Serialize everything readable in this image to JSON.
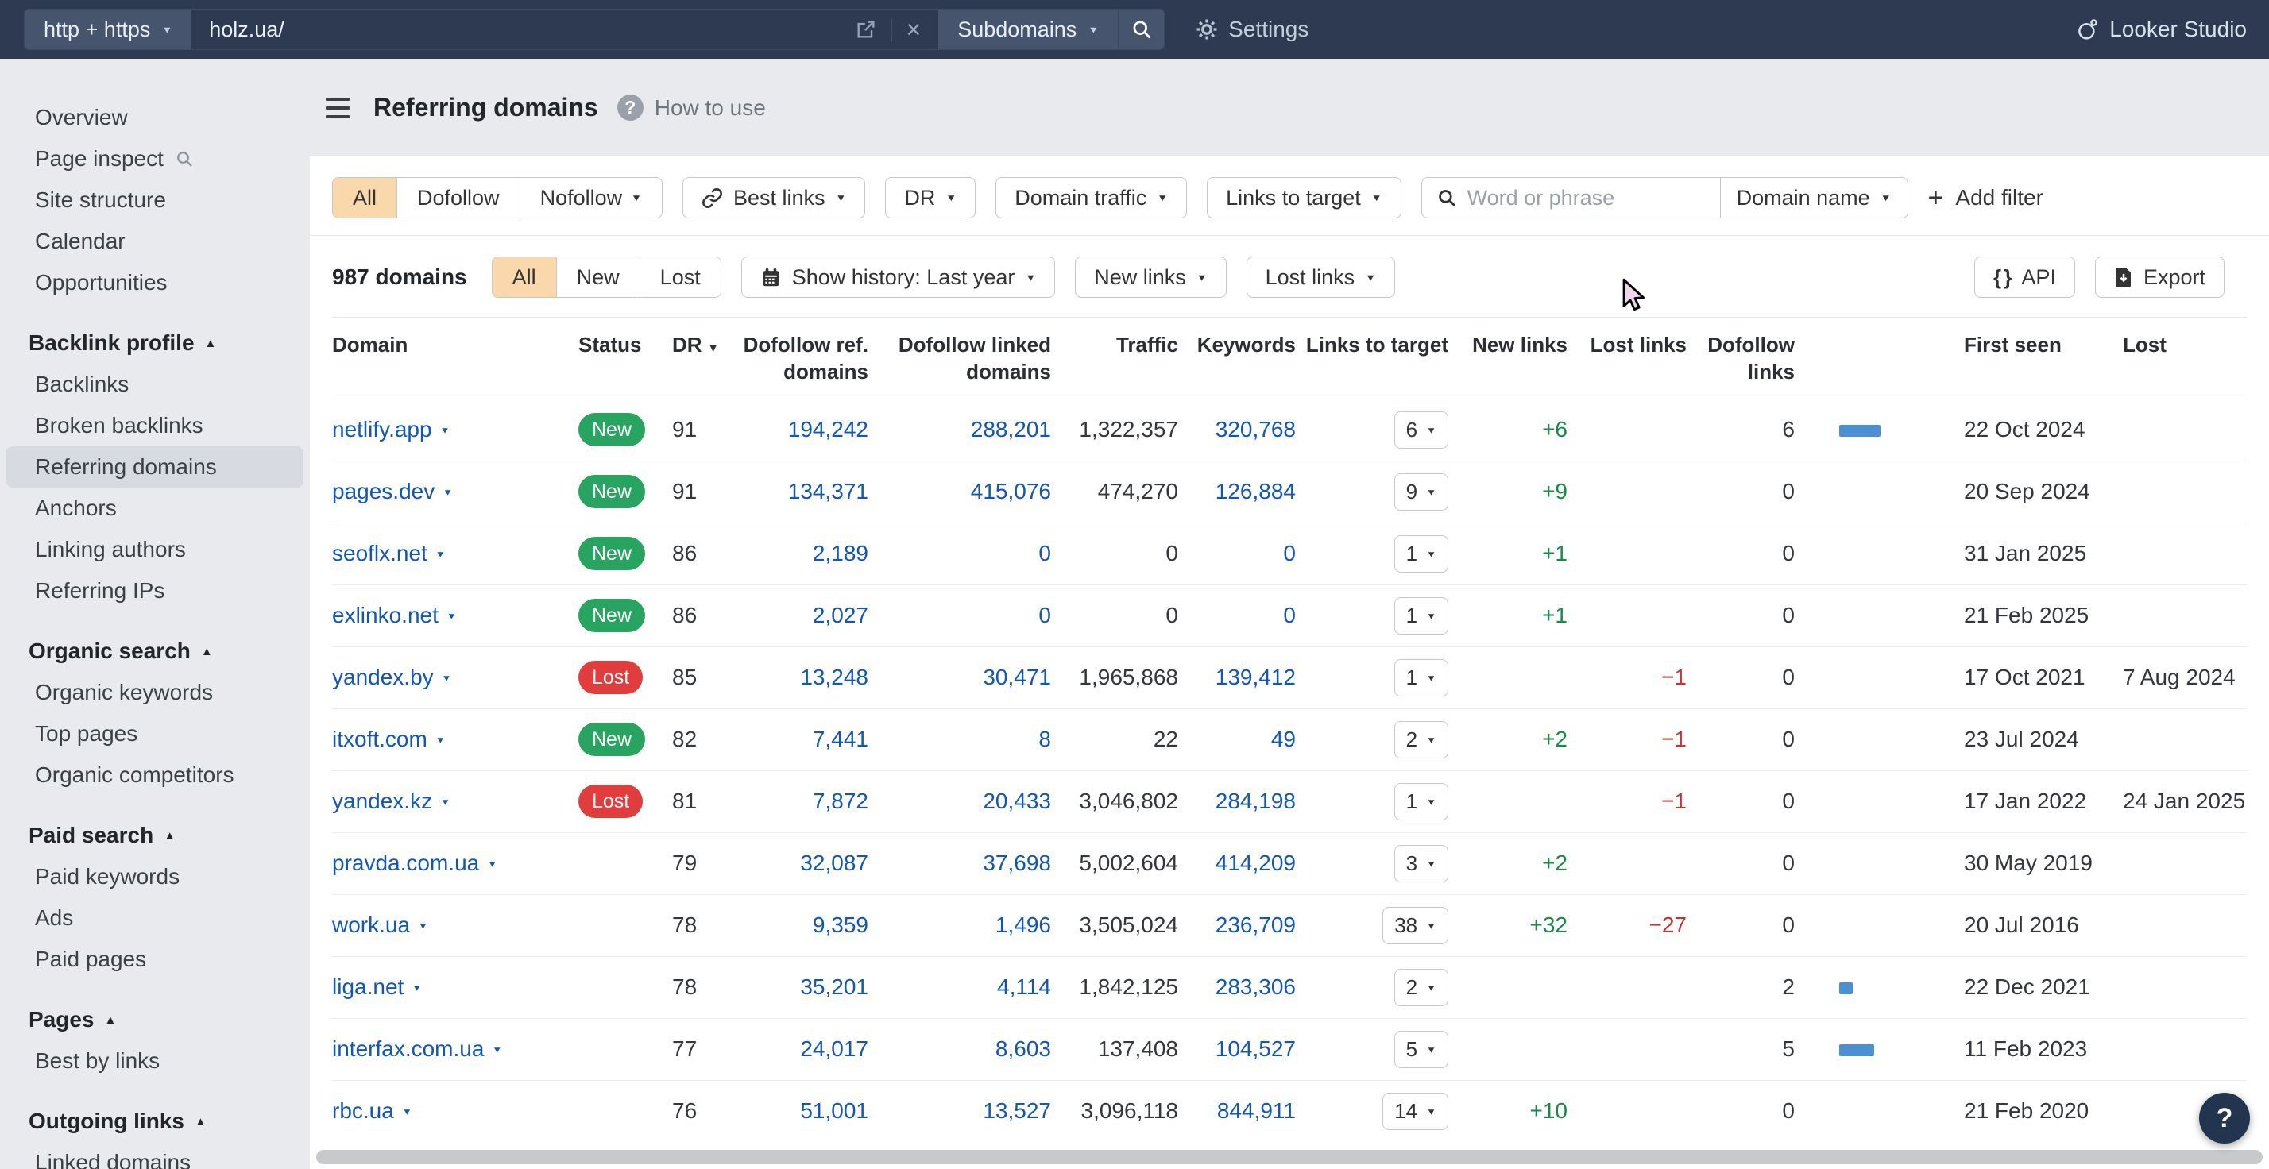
{
  "topbar": {
    "protocol": "http + https",
    "url": "holz.ua/",
    "mode": "Subdomains",
    "settings_label": "Settings",
    "brand": "Looker Studio"
  },
  "sidebar": {
    "items": [
      {
        "label": "Overview"
      },
      {
        "label": "Page inspect",
        "icon": "search"
      },
      {
        "label": "Site structure"
      },
      {
        "label": "Calendar"
      },
      {
        "label": "Opportunities"
      },
      {
        "type": "header",
        "label": "Backlink profile"
      },
      {
        "label": "Backlinks"
      },
      {
        "label": "Broken backlinks"
      },
      {
        "label": "Referring domains",
        "selected": true
      },
      {
        "label": "Anchors"
      },
      {
        "label": "Linking authors"
      },
      {
        "label": "Referring IPs"
      },
      {
        "type": "header",
        "label": "Organic search"
      },
      {
        "label": "Organic keywords"
      },
      {
        "label": "Top pages"
      },
      {
        "label": "Organic competitors"
      },
      {
        "type": "header",
        "label": "Paid search"
      },
      {
        "label": "Paid keywords"
      },
      {
        "label": "Ads"
      },
      {
        "label": "Paid pages"
      },
      {
        "type": "header",
        "label": "Pages"
      },
      {
        "label": "Best by links"
      },
      {
        "type": "header",
        "label": "Outgoing links"
      },
      {
        "label": "Linked domains"
      }
    ]
  },
  "header": {
    "title": "Referring domains",
    "help_label": "How to use"
  },
  "filters": {
    "segmented": [
      "All",
      "Dofollow",
      "Nofollow"
    ],
    "selected": "All",
    "dropdowns": [
      {
        "label": "Best links",
        "icon": "link"
      },
      {
        "label": "DR"
      },
      {
        "label": "Domain traffic"
      },
      {
        "label": "Links to target"
      }
    ],
    "search_placeholder": "Word or phrase",
    "search_field": "Domain name",
    "add_filter": "Add filter"
  },
  "toolbar": {
    "count": "987 domains",
    "segmented": [
      "All",
      "New",
      "Lost"
    ],
    "selected": "All",
    "history": "Show history: Last year",
    "new_links": "New links",
    "lost_links": "Lost links",
    "api": "API",
    "export": "Export"
  },
  "table": {
    "columns": [
      {
        "key": "domain",
        "label": "Domain",
        "align": "left"
      },
      {
        "key": "status",
        "label": "Status",
        "align": "left"
      },
      {
        "key": "dr",
        "label": "DR",
        "align": "left",
        "sort": "desc"
      },
      {
        "key": "dofollow_ref",
        "label": "Dofollow ref.\ndomains",
        "align": "right"
      },
      {
        "key": "dofollow_linked",
        "label": "Dofollow linked\ndomains",
        "align": "right"
      },
      {
        "key": "traffic",
        "label": "Traffic",
        "align": "right"
      },
      {
        "key": "keywords",
        "label": "Keywords",
        "align": "right"
      },
      {
        "key": "links_to_target",
        "label": "Links to target",
        "align": "right"
      },
      {
        "key": "new_links",
        "label": "New links",
        "align": "right"
      },
      {
        "key": "lost_links",
        "label": "Lost links",
        "align": "right"
      },
      {
        "key": "dofollow_links",
        "label": "Dofollow\nlinks",
        "align": "right"
      },
      {
        "key": "bar",
        "label": "",
        "align": "left"
      },
      {
        "key": "first_seen",
        "label": "First seen",
        "align": "left"
      },
      {
        "key": "lost",
        "label": "Lost",
        "align": "left"
      }
    ],
    "rows": [
      {
        "domain": "netlify.app",
        "status": "New",
        "dr": "91",
        "dofollow_ref": "194,242",
        "dofollow_linked": "288,201",
        "traffic": "1,322,357",
        "keywords": "320,768",
        "links_to_target": "6",
        "new_links": "+6",
        "lost_links": "",
        "dofollow_links": "6",
        "bar": 6,
        "first_seen": "22 Oct 2024",
        "lost": ""
      },
      {
        "domain": "pages.dev",
        "status": "New",
        "dr": "91",
        "dofollow_ref": "134,371",
        "dofollow_linked": "415,076",
        "traffic": "474,270",
        "keywords": "126,884",
        "links_to_target": "9",
        "new_links": "+9",
        "lost_links": "",
        "dofollow_links": "0",
        "bar": 0,
        "first_seen": "20 Sep 2024",
        "lost": ""
      },
      {
        "domain": "seoflx.net",
        "status": "New",
        "dr": "86",
        "dofollow_ref": "2,189",
        "dofollow_linked": "0",
        "traffic": "0",
        "keywords": "0",
        "links_to_target": "1",
        "new_links": "+1",
        "lost_links": "",
        "dofollow_links": "0",
        "bar": 0,
        "first_seen": "31 Jan 2025",
        "lost": ""
      },
      {
        "domain": "exlinko.net",
        "status": "New",
        "dr": "86",
        "dofollow_ref": "2,027",
        "dofollow_linked": "0",
        "traffic": "0",
        "keywords": "0",
        "links_to_target": "1",
        "new_links": "+1",
        "lost_links": "",
        "dofollow_links": "0",
        "bar": 0,
        "first_seen": "21 Feb 2025",
        "lost": ""
      },
      {
        "domain": "yandex.by",
        "status": "Lost",
        "dr": "85",
        "dofollow_ref": "13,248",
        "dofollow_linked": "30,471",
        "traffic": "1,965,868",
        "keywords": "139,412",
        "links_to_target": "1",
        "new_links": "",
        "lost_links": "−1",
        "dofollow_links": "0",
        "bar": 0,
        "first_seen": "17 Oct 2021",
        "lost": "7 Aug 2024"
      },
      {
        "domain": "itxoft.com",
        "status": "New",
        "dr": "82",
        "dofollow_ref": "7,441",
        "dofollow_linked": "8",
        "traffic": "22",
        "keywords": "49",
        "links_to_target": "2",
        "new_links": "+2",
        "lost_links": "−1",
        "dofollow_links": "0",
        "bar": 0,
        "first_seen": "23 Jul 2024",
        "lost": ""
      },
      {
        "domain": "yandex.kz",
        "status": "Lost",
        "dr": "81",
        "dofollow_ref": "7,872",
        "dofollow_linked": "20,433",
        "traffic": "3,046,802",
        "keywords": "284,198",
        "links_to_target": "1",
        "new_links": "",
        "lost_links": "−1",
        "dofollow_links": "0",
        "bar": 0,
        "first_seen": "17 Jan 2022",
        "lost": "24 Jan 2025"
      },
      {
        "domain": "pravda.com.ua",
        "status": "",
        "dr": "79",
        "dofollow_ref": "32,087",
        "dofollow_linked": "37,698",
        "traffic": "5,002,604",
        "keywords": "414,209",
        "links_to_target": "3",
        "new_links": "+2",
        "lost_links": "",
        "dofollow_links": "0",
        "bar": 0,
        "first_seen": "30 May 2019",
        "lost": ""
      },
      {
        "domain": "work.ua",
        "status": "",
        "dr": "78",
        "dofollow_ref": "9,359",
        "dofollow_linked": "1,496",
        "traffic": "3,505,024",
        "keywords": "236,709",
        "links_to_target": "38",
        "new_links": "+32",
        "lost_links": "−27",
        "dofollow_links": "0",
        "bar": 0,
        "first_seen": "20 Jul 2016",
        "lost": ""
      },
      {
        "domain": "liga.net",
        "status": "",
        "dr": "78",
        "dofollow_ref": "35,201",
        "dofollow_linked": "4,114",
        "traffic": "1,842,125",
        "keywords": "283,306",
        "links_to_target": "2",
        "new_links": "",
        "lost_links": "",
        "dofollow_links": "2",
        "bar": 2,
        "first_seen": "22 Dec 2021",
        "lost": ""
      },
      {
        "domain": "interfax.com.ua",
        "status": "",
        "dr": "77",
        "dofollow_ref": "24,017",
        "dofollow_linked": "8,603",
        "traffic": "137,408",
        "keywords": "104,527",
        "links_to_target": "5",
        "new_links": "",
        "lost_links": "",
        "dofollow_links": "5",
        "bar": 5,
        "first_seen": "11 Feb 2023",
        "lost": ""
      },
      {
        "domain": "rbc.ua",
        "status": "",
        "dr": "76",
        "dofollow_ref": "51,001",
        "dofollow_linked": "13,527",
        "traffic": "3,096,118",
        "keywords": "844,911",
        "links_to_target": "14",
        "new_links": "+10",
        "lost_links": "",
        "dofollow_links": "0",
        "bar": 0,
        "first_seen": "21 Feb 2020",
        "lost": ""
      }
    ]
  },
  "colors": {
    "topbar_bg": "#2d3a52",
    "accent_orange": "#f9d9ab",
    "badge_new": "#27a45f",
    "badge_lost": "#e23d3d",
    "link_blue": "#1157b8",
    "positive_green": "#178a43",
    "negative_red": "#c3362e",
    "bar_blue": "#4a90d2",
    "help_fab_bg": "#22344e"
  }
}
